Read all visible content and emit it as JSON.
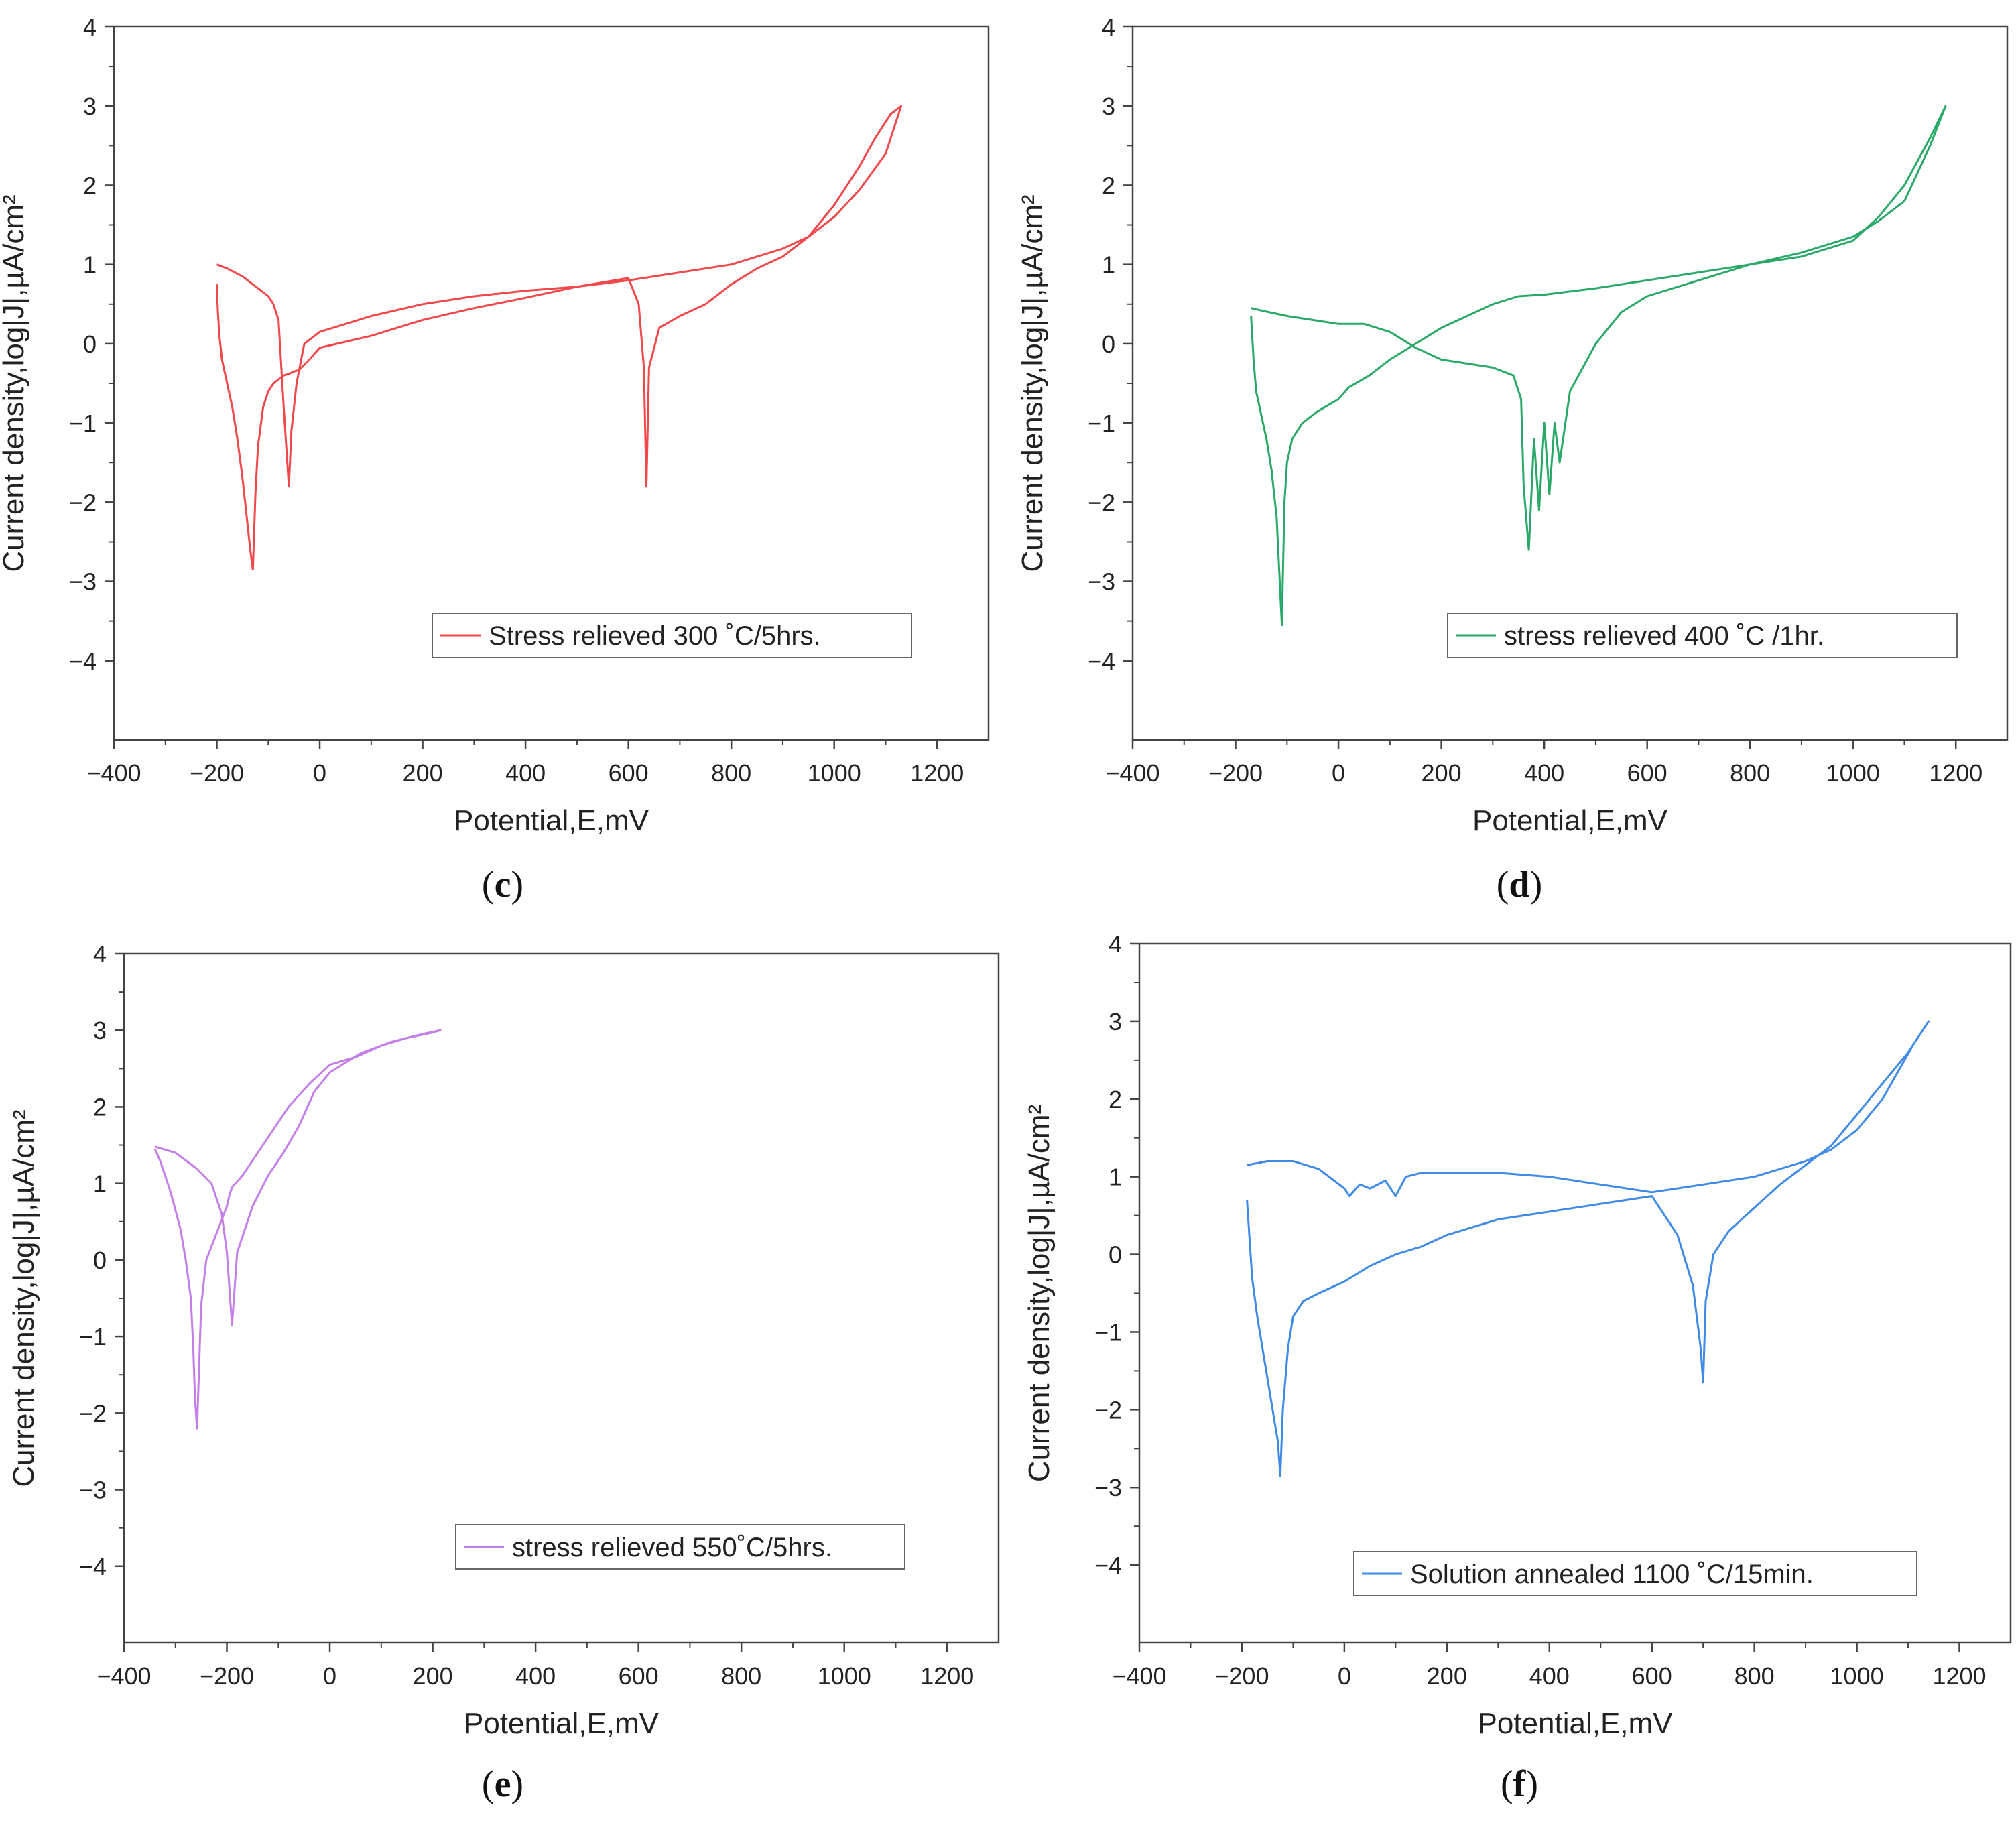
{
  "chart_data": [
    {
      "type": "line",
      "panel_label": "c",
      "xlabel": "Potential,E,mV",
      "ylabel": "Current density,log|J|,µA/cm²",
      "xlim": [
        -400,
        1300
      ],
      "ylim": [
        -5,
        4
      ],
      "xticks": [
        -400,
        -200,
        0,
        200,
        400,
        600,
        800,
        1000,
        1200
      ],
      "yticks": [
        -4,
        -3,
        -2,
        -1,
        0,
        1,
        2,
        3,
        4
      ],
      "legend": "Stress relieved 300 ˚C/5hrs.",
      "color": "#f0474a",
      "series": [
        {
          "name": "Stress relieved 300 ˚C/5hrs.",
          "x": [
            -200,
            -198,
            -195,
            -190,
            -180,
            -170,
            -160,
            -150,
            -140,
            -135,
            -130,
            -125,
            -120,
            -110,
            -100,
            -90,
            -80,
            -70,
            -60,
            -50,
            -40,
            -20,
            0,
            100,
            200,
            300,
            400,
            500,
            600,
            620,
            630,
            635,
            640,
            660,
            700,
            750,
            800,
            850,
            900,
            950,
            1000,
            1050,
            1080,
            1110,
            1130,
            1100,
            1050,
            1000,
            950,
            900,
            800,
            700,
            600,
            500,
            400,
            300,
            200,
            100,
            0,
            -30,
            -45,
            -55,
            -60,
            -70,
            -80,
            -90,
            -100,
            -120,
            -150,
            -180,
            -200
          ],
          "y": [
            0.75,
            0.4,
            0.1,
            -0.2,
            -0.5,
            -0.8,
            -1.2,
            -1.7,
            -2.3,
            -2.6,
            -2.85,
            -1.9,
            -1.3,
            -0.8,
            -0.6,
            -0.5,
            -0.45,
            -0.4,
            -0.38,
            -0.35,
            -0.33,
            -0.2,
            -0.05,
            0.1,
            0.3,
            0.45,
            0.58,
            0.72,
            0.83,
            0.5,
            -0.3,
            -1.8,
            -0.3,
            0.2,
            0.35,
            0.5,
            0.75,
            0.95,
            1.1,
            1.35,
            1.75,
            2.25,
            2.6,
            2.9,
            3.0,
            2.4,
            1.95,
            1.6,
            1.35,
            1.2,
            1.0,
            0.9,
            0.8,
            0.72,
            0.67,
            0.6,
            0.5,
            0.35,
            0.15,
            0.0,
            -0.5,
            -1.1,
            -1.8,
            -0.8,
            0.3,
            0.5,
            0.6,
            0.7,
            0.85,
            0.95,
            1.0
          ]
        }
      ]
    },
    {
      "type": "line",
      "panel_label": "d",
      "xlabel": "Potential,E,mV",
      "ylabel": "Current density,log|J|,µA/cm²",
      "xlim": [
        -400,
        1300
      ],
      "ylim": [
        -5,
        4
      ],
      "xticks": [
        -400,
        -200,
        0,
        200,
        400,
        600,
        800,
        1000,
        1200
      ],
      "yticks": [
        -4,
        -3,
        -2,
        -1,
        0,
        1,
        2,
        3,
        4
      ],
      "legend": "stress relieved 400 ˚C /1hr.",
      "color": "#2aa867",
      "series": [
        {
          "name": "stress relieved 400 ˚C /1hr.",
          "x": [
            -170,
            -165,
            -160,
            -150,
            -140,
            -130,
            -120,
            -110,
            -105,
            -100,
            -90,
            -70,
            -40,
            0,
            20,
            60,
            100,
            150,
            200,
            250,
            300,
            350,
            400,
            500,
            600,
            700,
            800,
            900,
            1000,
            1050,
            1100,
            1150,
            1180,
            1150,
            1100,
            1050,
            1000,
            900,
            800,
            700,
            600,
            550,
            500,
            450,
            430,
            420,
            410,
            400,
            390,
            380,
            370,
            360,
            355,
            340,
            300,
            250,
            200,
            150,
            100,
            50,
            0,
            -50,
            -100,
            -150,
            -170
          ],
          "y": [
            0.35,
            -0.2,
            -0.6,
            -0.9,
            -1.2,
            -1.6,
            -2.2,
            -3.55,
            -2.0,
            -1.5,
            -1.2,
            -1.0,
            -0.85,
            -0.7,
            -0.55,
            -0.4,
            -0.2,
            0.0,
            0.2,
            0.35,
            0.5,
            0.6,
            0.62,
            0.7,
            0.8,
            0.9,
            1.0,
            1.1,
            1.3,
            1.6,
            2.0,
            2.6,
            3.0,
            2.5,
            1.8,
            1.55,
            1.35,
            1.15,
            1.0,
            0.8,
            0.6,
            0.4,
            0.0,
            -0.6,
            -1.5,
            -1.0,
            -1.9,
            -1.0,
            -2.1,
            -1.2,
            -2.6,
            -1.8,
            -0.7,
            -0.4,
            -0.3,
            -0.25,
            -0.2,
            -0.05,
            0.15,
            0.25,
            0.25,
            0.3,
            0.35,
            0.42,
            0.45
          ]
        }
      ]
    },
    {
      "type": "line",
      "panel_label": "e",
      "xlabel": "Potential,E,mV",
      "ylabel": "Current density,log|J|,µA/cm²",
      "xlim": [
        -400,
        1300
      ],
      "ylim": [
        -5,
        4
      ],
      "xticks": [
        -400,
        -200,
        0,
        200,
        400,
        600,
        800,
        1000,
        1200
      ],
      "yticks": [
        -4,
        -3,
        -2,
        -1,
        0,
        1,
        2,
        3,
        4
      ],
      "legend": "stress relieved 550˚C/5hrs.",
      "color": "#c37ee8",
      "series": [
        {
          "name": "stress relieved 550˚C/5hrs.",
          "x": [
            -340,
            -330,
            -320,
            -310,
            -300,
            -290,
            -280,
            -270,
            -265,
            -262,
            -258,
            -250,
            -240,
            -220,
            -200,
            -195,
            -190,
            -170,
            -150,
            -120,
            -80,
            -40,
            0,
            50,
            100,
            150,
            200,
            215,
            180,
            120,
            60,
            0,
            -30,
            -60,
            -90,
            -120,
            -150,
            -180,
            -190,
            -200,
            -210,
            -230,
            -260,
            -300,
            -340
          ],
          "y": [
            1.45,
            1.3,
            1.1,
            0.9,
            0.65,
            0.4,
            0.0,
            -0.5,
            -1.2,
            -1.8,
            -2.2,
            -0.6,
            0.0,
            0.35,
            0.7,
            0.85,
            0.95,
            1.1,
            1.3,
            1.6,
            2.0,
            2.3,
            2.55,
            2.65,
            2.8,
            2.9,
            2.97,
            3.0,
            2.95,
            2.85,
            2.7,
            2.45,
            2.2,
            1.75,
            1.4,
            1.1,
            0.7,
            0.1,
            -0.85,
            0.1,
            0.6,
            1.0,
            1.2,
            1.4,
            1.48
          ]
        }
      ]
    },
    {
      "type": "line",
      "panel_label": "f",
      "xlabel": "Potential,E,mV",
      "ylabel": "Current density,log|J|,µA/cm²",
      "xlim": [
        -400,
        1300
      ],
      "ylim": [
        -5,
        4
      ],
      "xticks": [
        -400,
        -200,
        0,
        200,
        400,
        600,
        800,
        1000,
        1200
      ],
      "yticks": [
        -4,
        -3,
        -2,
        -1,
        0,
        1,
        2,
        3,
        4
      ],
      "legend": "Solution annealed 1100 ˚C/15min.",
      "color": "#3e8ae6",
      "series": [
        {
          "name": "Solution annealed 1100 ˚C/15min.",
          "x": [
            -190,
            -185,
            -180,
            -170,
            -160,
            -150,
            -140,
            -130,
            -125,
            -120,
            -110,
            -100,
            -80,
            -50,
            0,
            50,
            100,
            150,
            200,
            300,
            400,
            500,
            600,
            650,
            680,
            695,
            700,
            705,
            720,
            750,
            800,
            850,
            900,
            950,
            1000,
            1050,
            1100,
            1140,
            1110,
            1050,
            1000,
            950,
            900,
            800,
            700,
            600,
            500,
            400,
            300,
            200,
            150,
            120,
            100,
            80,
            50,
            30,
            10,
            0,
            -20,
            -50,
            -100,
            -150,
            -190
          ],
          "y": [
            0.7,
            0.2,
            -0.3,
            -0.8,
            -1.2,
            -1.6,
            -2.0,
            -2.4,
            -2.85,
            -2.0,
            -1.2,
            -0.8,
            -0.6,
            -0.5,
            -0.35,
            -0.15,
            0.0,
            0.1,
            0.25,
            0.45,
            0.55,
            0.65,
            0.75,
            0.25,
            -0.4,
            -1.2,
            -1.65,
            -0.6,
            0.0,
            0.3,
            0.6,
            0.9,
            1.15,
            1.4,
            1.8,
            2.2,
            2.6,
            3.0,
            2.7,
            2.0,
            1.6,
            1.35,
            1.2,
            1.0,
            0.9,
            0.8,
            0.9,
            1.0,
            1.05,
            1.05,
            1.05,
            1.0,
            0.75,
            0.95,
            0.85,
            0.9,
            0.75,
            0.85,
            0.95,
            1.1,
            1.2,
            1.2,
            1.15
          ]
        }
      ]
    }
  ]
}
